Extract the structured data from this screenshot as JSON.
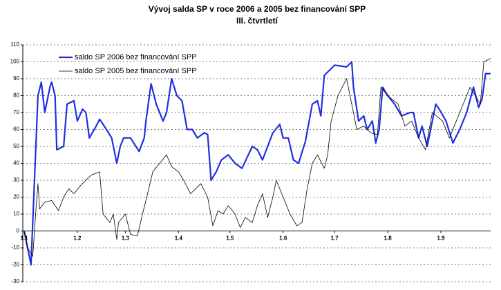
{
  "chart_data": {
    "type": "line",
    "title": "Vývoj salda SP v roce 2006 a 2005 bez financování SPP",
    "subtitle": "III. čtvrtletí",
    "xlim": [
      0,
      272
    ],
    "xticks": [
      {
        "value": 0,
        "label": "1.1"
      },
      {
        "value": 31,
        "label": "1.2"
      },
      {
        "value": 59,
        "label": "1.3"
      },
      {
        "value": 90,
        "label": "1.4"
      },
      {
        "value": 120,
        "label": "1.5"
      },
      {
        "value": 151,
        "label": "1.6"
      },
      {
        "value": 181,
        "label": "1.7"
      },
      {
        "value": 212,
        "label": "1.8"
      },
      {
        "value": 243,
        "label": "1.9"
      }
    ],
    "ylim": [
      -30,
      110
    ],
    "yticks": [
      -30,
      -20,
      -10,
      0,
      10,
      20,
      30,
      40,
      50,
      60,
      70,
      80,
      90,
      100,
      110
    ],
    "grid": true,
    "legend": "top-left",
    "series": [
      {
        "name": "saldo SP 2006 bez financování SPP",
        "color": "#1f2fe0",
        "width": 2.2,
        "x": [
          0,
          4,
          8,
          10,
          12,
          15,
          16,
          18,
          19,
          23,
          25,
          29,
          31,
          34,
          36,
          38,
          42,
          44,
          48,
          51,
          54,
          56,
          58,
          62,
          67,
          70,
          71,
          74,
          77,
          81,
          83,
          86,
          89,
          92,
          95,
          98,
          101,
          105,
          107,
          109,
          112,
          115,
          119,
          123,
          127,
          133,
          136,
          139,
          145,
          149,
          151,
          154,
          157,
          160,
          164,
          168,
          171,
          173,
          175,
          181,
          188,
          191,
          192,
          195,
          198,
          200,
          203,
          205,
          207,
          209,
          212,
          216,
          220,
          225,
          227,
          230,
          232,
          235,
          240,
          242,
          246,
          250,
          254,
          258,
          262,
          265,
          267,
          269,
          272
        ],
        "values": [
          0,
          -20,
          80,
          88,
          70,
          85,
          88,
          80,
          48,
          50,
          75,
          77,
          65,
          72,
          70,
          55,
          62,
          66,
          60,
          55,
          40,
          50,
          55,
          55,
          47,
          55,
          65,
          87,
          75,
          65,
          70,
          90,
          80,
          77,
          60,
          60,
          55,
          58,
          57,
          30,
          35,
          42,
          45,
          40,
          37,
          50,
          48,
          42,
          58,
          63,
          55,
          55,
          42,
          40,
          53,
          75,
          77,
          68,
          92,
          98,
          97,
          100,
          85,
          65,
          68,
          60,
          65,
          52,
          60,
          85,
          80,
          75,
          68,
          70,
          70,
          55,
          62,
          50,
          75,
          72,
          65,
          52,
          60,
          70,
          85,
          73,
          78,
          93,
          93
        ]
      },
      {
        "name": "saldo SP 2005 bez financování SPP",
        "color": "#000000",
        "width": 0.8,
        "x": [
          0,
          2,
          5,
          7,
          8,
          9,
          12,
          16,
          20,
          23,
          26,
          29,
          33,
          36,
          39,
          44,
          46,
          50,
          52,
          54,
          55,
          59,
          62,
          66,
          69,
          71,
          75,
          79,
          83,
          86,
          90,
          93,
          97,
          100,
          103,
          107,
          110,
          113,
          116,
          119,
          123,
          126,
          129,
          133,
          136,
          139,
          142,
          145,
          147,
          151,
          155,
          159,
          162,
          165,
          168,
          171,
          175,
          177,
          179,
          183,
          188,
          191,
          194,
          198,
          202,
          206,
          208,
          212,
          218,
          222,
          226,
          230,
          234,
          238,
          244,
          248,
          254,
          260,
          263,
          266,
          268,
          272
        ],
        "values": [
          0,
          -10,
          -15,
          15,
          28,
          13,
          17,
          18,
          12,
          20,
          25,
          22,
          27,
          30,
          33,
          35,
          10,
          5,
          10,
          -5,
          5,
          10,
          -2,
          -3,
          10,
          18,
          35,
          40,
          45,
          38,
          35,
          30,
          22,
          25,
          28,
          20,
          3,
          12,
          10,
          15,
          10,
          2,
          8,
          5,
          15,
          22,
          8,
          20,
          30,
          20,
          10,
          3,
          5,
          25,
          40,
          45,
          37,
          45,
          65,
          80,
          90,
          75,
          60,
          62,
          58,
          57,
          85,
          80,
          75,
          62,
          65,
          55,
          48,
          70,
          65,
          55,
          70,
          85,
          80,
          75,
          100,
          102
        ]
      }
    ]
  }
}
